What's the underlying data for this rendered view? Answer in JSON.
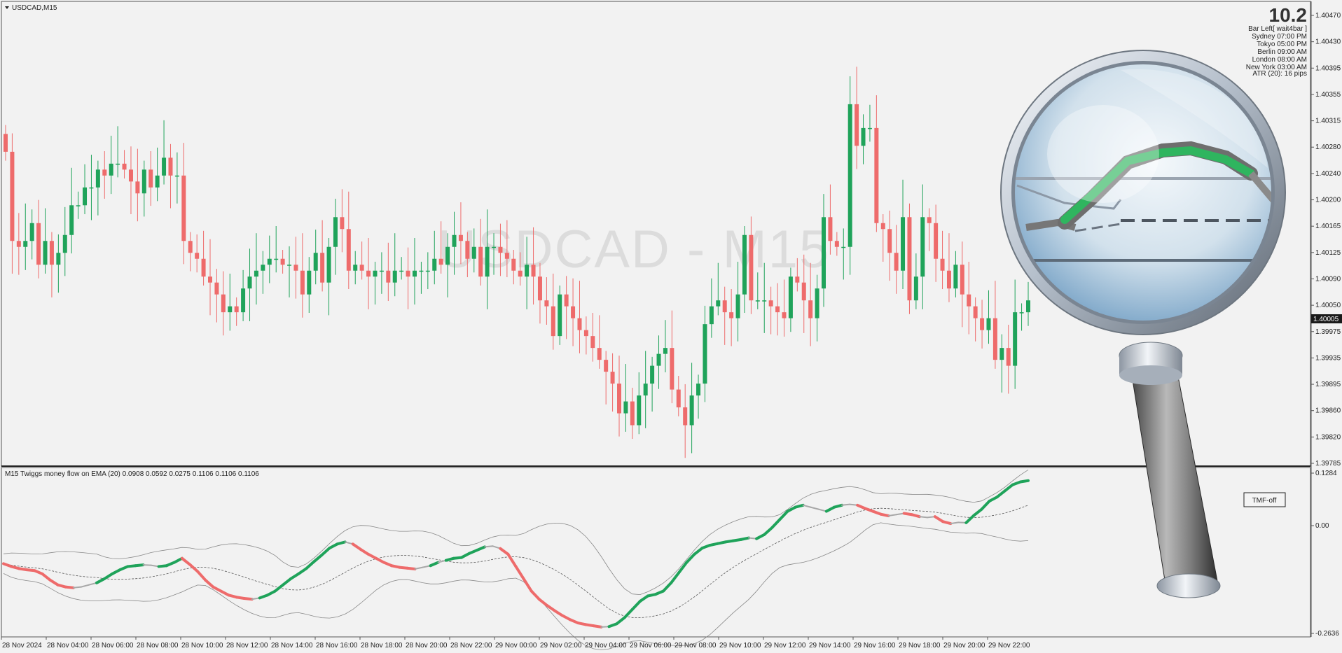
{
  "chart": {
    "symbol_label": "USDCAD,M15",
    "watermark": "USDCAD - M15",
    "current_price": "1.40005"
  },
  "info_panel": {
    "spread": "10.2",
    "bar_left": "Bar Left[ wait4bar ]",
    "sessions": [
      {
        "name": "Sydney",
        "time": "07:00 PM"
      },
      {
        "name": "Tokyo",
        "time": "05:00 PM"
      },
      {
        "name": "Berlin",
        "time": "09:00 AM"
      },
      {
        "name": "London",
        "time": "08:00 AM"
      },
      {
        "name": "New York",
        "time": "03:00 AM"
      }
    ],
    "atr": "ATR (20): 16 pips"
  },
  "price_axis": [
    "1.40470",
    "1.40430",
    "1.40395",
    "1.40355",
    "1.40315",
    "1.40280",
    "1.40240",
    "1.40200",
    "1.40165",
    "1.40125",
    "1.40090",
    "1.40050",
    "1.39975",
    "1.39935",
    "1.39895",
    "1.39860",
    "1.39820",
    "1.39785"
  ],
  "indicator": {
    "label": "M15 Twiggs money flow on EMA (20) 0.0908 0.0592 0.0275 0.1106 0.1106 0.1106",
    "axis": [
      "0.1284",
      "0.00",
      "-0.2636"
    ],
    "button": "TMF-off"
  },
  "time_axis": [
    "28 Nov 2024",
    "28 Nov 04:00",
    "28 Nov 06:00",
    "28 Nov 08:00",
    "28 Nov 10:00",
    "28 Nov 12:00",
    "28 Nov 14:00",
    "28 Nov 16:00",
    "28 Nov 18:00",
    "28 Nov 20:00",
    "28 Nov 22:00",
    "29 Nov 00:00",
    "29 Nov 02:00",
    "29 Nov 04:00",
    "29 Nov 06:00",
    "29 Nov 08:00",
    "29 Nov 10:00",
    "29 Nov 12:00",
    "29 Nov 14:00",
    "29 Nov 16:00",
    "29 Nov 18:00",
    "29 Nov 20:00",
    "29 Nov 22:00"
  ],
  "colors": {
    "bull": "#1fa35a",
    "bear": "#ee6b6b",
    "neutral": "#a8a8a8",
    "background": "#f2f2f2"
  },
  "chart_data": {
    "type": "candlestick",
    "ylim": [
      1.3977,
      1.405
    ],
    "close": [
      1.4028,
      1.4013,
      1.4012,
      1.4013,
      1.4016,
      1.4009,
      1.4013,
      1.4009,
      1.4011,
      1.4014,
      1.4019,
      1.4019,
      1.4022,
      1.4022,
      1.4025,
      1.4024,
      1.4026,
      1.4026,
      1.4025,
      1.4023,
      1.4021,
      1.4025,
      1.4022,
      1.4024,
      1.4027,
      1.4024,
      1.4024,
      1.4013,
      1.4011,
      1.401,
      1.4007,
      1.4006,
      1.4004,
      1.4001,
      1.4002,
      1.4001,
      1.4005,
      1.4007,
      1.4008,
      1.4009,
      1.401,
      1.401,
      1.4009,
      1.4009,
      1.4008,
      1.4004,
      1.4008,
      1.4011,
      1.4006,
      1.4012,
      1.4017,
      1.4015,
      1.4008,
      1.4009,
      1.4008,
      1.4007,
      1.4008,
      1.4008,
      1.4006,
      1.4008,
      1.4008,
      1.4007,
      1.4008,
      1.4008,
      1.4008,
      1.401,
      1.4009,
      1.4012,
      1.4014,
      1.4013,
      1.401,
      1.4012,
      1.4007,
      1.4012,
      1.4012,
      1.4011,
      1.401,
      1.4008,
      1.4007,
      1.4009,
      1.4007,
      1.4003,
      1.4002,
      1.3997,
      1.4004,
      1.4002,
      1.4,
      1.3998,
      1.3997,
      1.3995,
      1.3993,
      1.3991,
      1.3989,
      1.3984,
      1.3986,
      1.3982,
      1.3987,
      1.3989,
      1.3992,
      1.3994,
      1.3995,
      1.3988,
      1.3985,
      1.3982,
      1.3987,
      1.3989,
      1.3999,
      1.4002,
      1.4003,
      1.4001,
      1.4,
      1.4004,
      1.4014,
      1.4003,
      1.4003,
      1.4003,
      1.4002,
      1.4001,
      1.4,
      1.4007,
      1.4006,
      1.4003,
      1.4,
      1.4005,
      1.4017,
      1.4013,
      1.4012,
      1.4012,
      1.4036,
      1.4029,
      1.4032,
      1.4032,
      1.4016,
      1.4015,
      1.4011,
      1.4008,
      1.4017,
      1.4003,
      1.4007,
      1.4017,
      1.4016,
      1.401,
      1.4008,
      1.4005,
      1.4009,
      1.4004,
      1.4002,
      1.4,
      1.3998,
      1.4,
      1.3993,
      1.3995,
      1.3992,
      1.4001,
      1.4001,
      1.4003
    ],
    "series": [
      {
        "name": "Twiggs money flow",
        "role": "indicator",
        "note": "sub-window values follow, range -0.2636 to 0.1284"
      }
    ],
    "indicator_ylim": [
      -0.2636,
      0.1284
    ],
    "tmf": [
      -0.093,
      -0.1,
      -0.105,
      -0.108,
      -0.11,
      -0.118,
      -0.133,
      -0.145,
      -0.15,
      -0.152,
      -0.15,
      -0.145,
      -0.14,
      -0.13,
      -0.118,
      -0.108,
      -0.1,
      -0.098,
      -0.096,
      -0.097,
      -0.1,
      -0.098,
      -0.09,
      -0.08,
      -0.095,
      -0.112,
      -0.133,
      -0.15,
      -0.16,
      -0.17,
      -0.175,
      -0.178,
      -0.18,
      -0.177,
      -0.17,
      -0.16,
      -0.145,
      -0.13,
      -0.118,
      -0.105,
      -0.088,
      -0.072,
      -0.055,
      -0.045,
      -0.04,
      -0.045,
      -0.058,
      -0.07,
      -0.08,
      -0.09,
      -0.098,
      -0.102,
      -0.104,
      -0.106,
      -0.102,
      -0.098,
      -0.09,
      -0.085,
      -0.08,
      -0.078,
      -0.068,
      -0.06,
      -0.052,
      -0.05,
      -0.056,
      -0.07,
      -0.1,
      -0.13,
      -0.16,
      -0.18,
      -0.195,
      -0.208,
      -0.22,
      -0.23,
      -0.238,
      -0.242,
      -0.245,
      -0.248,
      -0.247,
      -0.24,
      -0.225,
      -0.205,
      -0.185,
      -0.172,
      -0.168,
      -0.16,
      -0.14,
      -0.115,
      -0.09,
      -0.07,
      -0.055,
      -0.048,
      -0.044,
      -0.04,
      -0.037,
      -0.034,
      -0.03,
      -0.032,
      -0.022,
      -0.005,
      0.015,
      0.035,
      0.045,
      0.05,
      0.045,
      0.04,
      0.035,
      0.045,
      0.05,
      0.052,
      0.05,
      0.042,
      0.035,
      0.028,
      0.024,
      0.027,
      0.03,
      0.027,
      0.022,
      0.02,
      0.022,
      0.01,
      0.005,
      0.008,
      0.007,
      0.025,
      0.04,
      0.06,
      0.07,
      0.085,
      0.1,
      0.107,
      0.11
    ]
  }
}
